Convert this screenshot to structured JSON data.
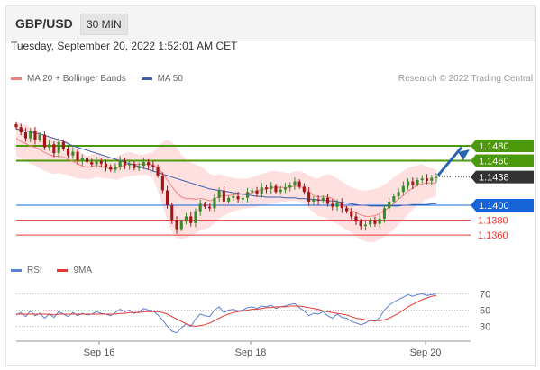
{
  "header": {
    "pair": "GBP/USD",
    "timeframe": "30 MIN"
  },
  "timestamp": "Tuesday, September 20, 2022 1:52:01 AM CET",
  "legend": {
    "ma20": "MA 20 + Bollinger Bands",
    "ma50": "MA 50",
    "rsi": "RSI",
    "ma9": "9MA"
  },
  "credit": "Research © 2022 Trading Central",
  "colors": {
    "green": "#4c9a0b",
    "blue": "#1565d8",
    "red": "#e53935",
    "dark": "#333333",
    "band": "#ffd5d5",
    "ma20": "#f08080",
    "ma50": "#3b5fa8",
    "rsi": "#5b7fd6",
    "candle_up": "#3a8a2a",
    "candle_down": "#a31515"
  },
  "chart_data": {
    "type": "candlestick",
    "x_ticks": [
      "Sep 16",
      "Sep 18",
      "Sep 20"
    ],
    "ylim": [
      1.1325,
      1.1555
    ],
    "levels": [
      {
        "value": 1.148,
        "label": "1.1480",
        "kind": "resistance",
        "color": "#4c9a0b"
      },
      {
        "value": 1.146,
        "label": "1.1460",
        "kind": "resistance",
        "color": "#4c9a0b"
      },
      {
        "value": 1.1438,
        "label": "1.1438",
        "kind": "last",
        "color": "#333333"
      },
      {
        "value": 1.14,
        "label": "1.1400",
        "kind": "pivot",
        "color": "#1565d8"
      },
      {
        "value": 1.138,
        "label": "1.1380",
        "kind": "support",
        "color": "#e53935"
      },
      {
        "value": 1.136,
        "label": "1.1360",
        "kind": "support",
        "color": "#e53935"
      }
    ],
    "closes": [
      1.1505,
      1.1498,
      1.149,
      1.15,
      1.1488,
      1.1495,
      1.1478,
      1.1482,
      1.147,
      1.1485,
      1.1476,
      1.1467,
      1.1472,
      1.146,
      1.1463,
      1.1458,
      1.1455,
      1.1459,
      1.1456,
      1.1452,
      1.1448,
      1.1452,
      1.146,
      1.1454,
      1.1456,
      1.145,
      1.1453,
      1.1458,
      1.1454,
      1.1452,
      1.144,
      1.142,
      1.14,
      1.138,
      1.1368,
      1.1378,
      1.1385,
      1.1376,
      1.1392,
      1.1402,
      1.1398,
      1.1396,
      1.141,
      1.142,
      1.1405,
      1.141,
      1.1412,
      1.1408,
      1.141,
      1.1418,
      1.142,
      1.1415,
      1.1424,
      1.1422,
      1.1426,
      1.1418,
      1.1421,
      1.1424,
      1.1427,
      1.1432,
      1.1425,
      1.1418,
      1.1405,
      1.1408,
      1.1406,
      1.141,
      1.1402,
      1.1398,
      1.1404,
      1.1396,
      1.1392,
      1.1385,
      1.1378,
      1.1372,
      1.1374,
      1.138,
      1.1375,
      1.1382,
      1.1396,
      1.1405,
      1.1412,
      1.1418,
      1.1426,
      1.1432,
      1.1428,
      1.1434,
      1.1436,
      1.1433,
      1.1437,
      1.1438
    ],
    "bollinger": {
      "upper": [
        1.1512,
        1.151,
        1.1508,
        1.1505,
        1.1502,
        1.1498,
        1.1495,
        1.1492,
        1.149,
        1.149,
        1.1488,
        1.1484,
        1.148,
        1.1475,
        1.147,
        1.1466,
        1.1468,
        1.147,
        1.1468,
        1.1465,
        1.1462,
        1.1464,
        1.1468,
        1.147,
        1.1472,
        1.147,
        1.1468,
        1.1468,
        1.147,
        1.1472,
        1.1478,
        1.1485,
        1.1488,
        1.1485,
        1.1478,
        1.1468,
        1.1462,
        1.1458,
        1.1455,
        1.1452,
        1.1448,
        1.1442,
        1.144,
        1.1442,
        1.144,
        1.1438,
        1.1437,
        1.1436,
        1.1436,
        1.1436,
        1.1438,
        1.144,
        1.1442,
        1.1444,
        1.1446,
        1.1446,
        1.1445,
        1.1444,
        1.1443,
        1.1446,
        1.1446,
        1.1444,
        1.144,
        1.1437,
        1.1436,
        1.144,
        1.1442,
        1.144,
        1.1436,
        1.1432,
        1.1428,
        1.1424,
        1.1422,
        1.142,
        1.142,
        1.1421,
        1.1422,
        1.1424,
        1.1428,
        1.1432,
        1.1438,
        1.1442,
        1.1446,
        1.145,
        1.1452,
        1.1454,
        1.1455,
        1.1452,
        1.145,
        1.1448
      ],
      "lower": [
        1.1466,
        1.1462,
        1.1459,
        1.1456,
        1.1453,
        1.145,
        1.1446,
        1.1444,
        1.1442,
        1.1443,
        1.1442,
        1.144,
        1.1438,
        1.1436,
        1.1436,
        1.1435,
        1.1436,
        1.1438,
        1.1437,
        1.1436,
        1.1436,
        1.1434,
        1.1436,
        1.1438,
        1.1439,
        1.144,
        1.1441,
        1.1441,
        1.144,
        1.1436,
        1.142,
        1.14,
        1.138,
        1.1364,
        1.1356,
        1.1354,
        1.1356,
        1.136,
        1.1362,
        1.1366,
        1.1368,
        1.137,
        1.1376,
        1.1382,
        1.1386,
        1.1389,
        1.1392,
        1.1394,
        1.1395,
        1.1396,
        1.1397,
        1.1398,
        1.14,
        1.1401,
        1.1402,
        1.1403,
        1.1404,
        1.1405,
        1.1406,
        1.1406,
        1.1405,
        1.1402,
        1.1396,
        1.139,
        1.1386,
        1.1384,
        1.1381,
        1.1378,
        1.1375,
        1.1371,
        1.1367,
        1.1363,
        1.1358,
        1.1354,
        1.1351,
        1.135,
        1.1351,
        1.1354,
        1.1358,
        1.1362,
        1.1368,
        1.1374,
        1.138,
        1.1388,
        1.1394,
        1.14,
        1.1404,
        1.1408,
        1.141,
        1.1412
      ]
    },
    "ma20": [
      1.149,
      1.1486,
      1.1483,
      1.148,
      1.1478,
      1.1475,
      1.1471,
      1.1468,
      1.1466,
      1.1466,
      1.1465,
      1.1462,
      1.1459,
      1.1456,
      1.1453,
      1.1451,
      1.1452,
      1.1454,
      1.1452,
      1.1451,
      1.1449,
      1.1449,
      1.1452,
      1.1454,
      1.1456,
      1.1455,
      1.1455,
      1.1455,
      1.1455,
      1.1454,
      1.145,
      1.1443,
      1.1434,
      1.1425,
      1.1417,
      1.1411,
      1.1409,
      1.1409,
      1.1408,
      1.1409,
      1.1408,
      1.1406,
      1.1408,
      1.1412,
      1.1413,
      1.1413,
      1.1414,
      1.1415,
      1.1415,
      1.1416,
      1.1417,
      1.1419,
      1.1421,
      1.1422,
      1.1424,
      1.1424,
      1.1424,
      1.1424,
      1.1424,
      1.1426,
      1.1425,
      1.1423,
      1.1418,
      1.1413,
      1.1411,
      1.1412,
      1.1411,
      1.1409,
      1.1405,
      1.1401,
      1.1397,
      1.1393,
      1.139,
      1.1387,
      1.1385,
      1.1385,
      1.1386,
      1.1389,
      1.1393,
      1.1397,
      1.1403,
      1.1408,
      1.1413,
      1.1419,
      1.1423,
      1.1427,
      1.1429,
      1.143,
      1.143,
      1.143
    ],
    "ma50": [
      1.1503,
      1.1501,
      1.15,
      1.1499,
      1.1497,
      1.1496,
      1.1494,
      1.1492,
      1.149,
      1.1488,
      1.1486,
      1.1483,
      1.148,
      1.1478,
      1.1476,
      1.1474,
      1.1472,
      1.147,
      1.1468,
      1.1466,
      1.1464,
      1.1462,
      1.146,
      1.1458,
      1.1456,
      1.1454,
      1.1452,
      1.145,
      1.1448,
      1.1446,
      1.1444,
      1.1442,
      1.144,
      1.1438,
      1.1436,
      1.1434,
      1.1432,
      1.143,
      1.1428,
      1.1426,
      1.1424,
      1.1422,
      1.1421,
      1.142,
      1.1419,
      1.1418,
      1.1417,
      1.1416,
      1.1415,
      1.1414,
      1.1413,
      1.1412,
      1.1412,
      1.1411,
      1.1411,
      1.1411,
      1.1411,
      1.141,
      1.141,
      1.141,
      1.1409,
      1.1409,
      1.1408,
      1.1408,
      1.1407,
      1.1407,
      1.1406,
      1.1406,
      1.1405,
      1.1404,
      1.1403,
      1.1402,
      1.1401,
      1.14,
      1.14,
      1.1399,
      1.1399,
      1.1399,
      1.1399,
      1.1399,
      1.1399,
      1.1399,
      1.14,
      1.14,
      1.1401,
      1.1401,
      1.1401,
      1.1401,
      1.1402,
      1.1402
    ],
    "rsi": {
      "ticks": [
        70,
        50,
        30
      ],
      "ylim": [
        15,
        75
      ],
      "rsi": [
        44,
        47,
        42,
        49,
        43,
        46,
        40,
        45,
        41,
        48,
        45,
        42,
        47,
        43,
        46,
        44,
        45,
        48,
        46,
        45,
        43,
        47,
        51,
        48,
        50,
        46,
        48,
        52,
        50,
        49,
        44,
        38,
        30,
        24,
        22,
        28,
        33,
        30,
        39,
        45,
        43,
        42,
        50,
        54,
        47,
        50,
        51,
        49,
        50,
        53,
        54,
        52,
        55,
        54,
        56,
        52,
        54,
        55,
        57,
        58,
        53,
        49,
        43,
        46,
        45,
        48,
        43,
        40,
        45,
        41,
        40,
        36,
        34,
        32,
        34,
        38,
        36,
        41,
        50,
        56,
        60,
        63,
        66,
        69,
        67,
        69,
        70,
        68,
        69,
        70
      ],
      "ma9": [
        45,
        45,
        45,
        45,
        45,
        45,
        45,
        45,
        44,
        45,
        45,
        45,
        45,
        45,
        45,
        45,
        45,
        45,
        45,
        45,
        45,
        45,
        46,
        46,
        47,
        47,
        47,
        48,
        48,
        48,
        48,
        47,
        45,
        42,
        39,
        36,
        33,
        31,
        30,
        31,
        32,
        34,
        37,
        40,
        43,
        45,
        47,
        48,
        49,
        50,
        51,
        51,
        52,
        53,
        53,
        54,
        54,
        54,
        55,
        55,
        55,
        54,
        53,
        52,
        51,
        49,
        48,
        47,
        46,
        45,
        44,
        42,
        40,
        39,
        38,
        37,
        37,
        37,
        38,
        40,
        43,
        46,
        50,
        54,
        57,
        60,
        63,
        65,
        67,
        68
      ]
    }
  }
}
